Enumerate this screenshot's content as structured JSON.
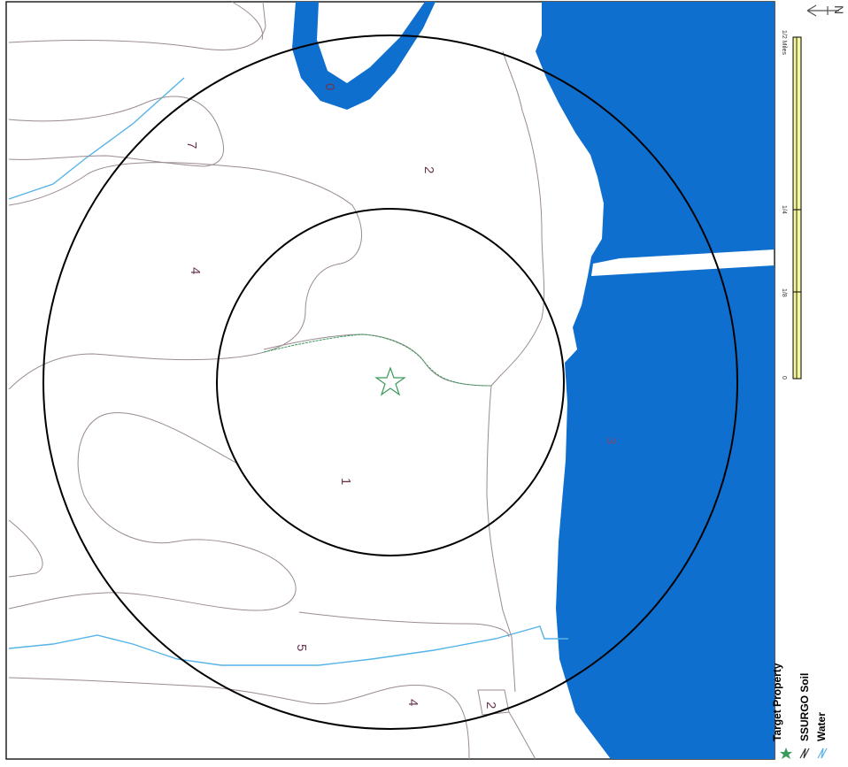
{
  "colors": {
    "water_fill": "#0f6fce",
    "water_line": "#56b3e9",
    "soil_line": "#9a8a94",
    "soil_label": "#6a3650",
    "target": "#3a9a5a",
    "ring": "#000000",
    "scale_fill": "#f4f6a0"
  },
  "icons": {
    "target": "star-icon",
    "soil": "polyline-icon",
    "water": "polyline-icon",
    "north": "north-arrow-icon"
  },
  "soil_units": [
    "0",
    "7",
    "2",
    "4",
    "1",
    "3",
    "5",
    "4",
    "2"
  ],
  "legend": {
    "target_label": "Target Property",
    "soil_label": "SSURGO Soil",
    "water_label": "Water"
  },
  "scale": {
    "left_label": "0",
    "q1_label": "1/8",
    "mid_label": "1/4",
    "right_label": "1/2 Miles"
  },
  "north": {
    "label": "N"
  }
}
